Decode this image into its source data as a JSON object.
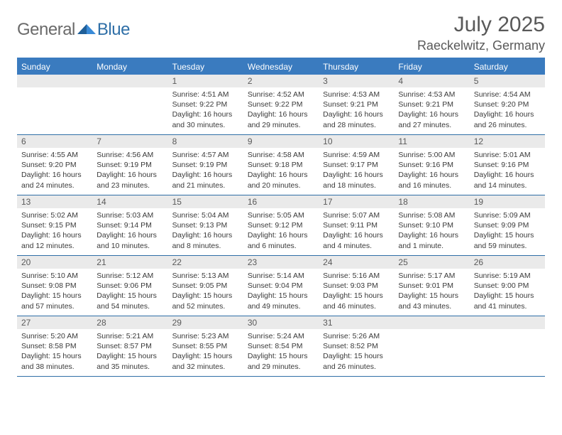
{
  "logo": {
    "text_a": "General",
    "text_b": "Blue"
  },
  "title": "July 2025",
  "location": "Raeckelwitz, Germany",
  "colors": {
    "header_bar": "#3a7bbf",
    "rule": "#2f6fa7",
    "daynum_bg": "#eaeaea",
    "text_muted": "#595959",
    "body_text": "#3a3a3a"
  },
  "weekdays": [
    "Sunday",
    "Monday",
    "Tuesday",
    "Wednesday",
    "Thursday",
    "Friday",
    "Saturday"
  ],
  "weeks": [
    [
      null,
      null,
      {
        "n": "1",
        "sr": "4:51 AM",
        "ss": "9:22 PM",
        "dl": "16 hours and 30 minutes."
      },
      {
        "n": "2",
        "sr": "4:52 AM",
        "ss": "9:22 PM",
        "dl": "16 hours and 29 minutes."
      },
      {
        "n": "3",
        "sr": "4:53 AM",
        "ss": "9:21 PM",
        "dl": "16 hours and 28 minutes."
      },
      {
        "n": "4",
        "sr": "4:53 AM",
        "ss": "9:21 PM",
        "dl": "16 hours and 27 minutes."
      },
      {
        "n": "5",
        "sr": "4:54 AM",
        "ss": "9:20 PM",
        "dl": "16 hours and 26 minutes."
      }
    ],
    [
      {
        "n": "6",
        "sr": "4:55 AM",
        "ss": "9:20 PM",
        "dl": "16 hours and 24 minutes."
      },
      {
        "n": "7",
        "sr": "4:56 AM",
        "ss": "9:19 PM",
        "dl": "16 hours and 23 minutes."
      },
      {
        "n": "8",
        "sr": "4:57 AM",
        "ss": "9:19 PM",
        "dl": "16 hours and 21 minutes."
      },
      {
        "n": "9",
        "sr": "4:58 AM",
        "ss": "9:18 PM",
        "dl": "16 hours and 20 minutes."
      },
      {
        "n": "10",
        "sr": "4:59 AM",
        "ss": "9:17 PM",
        "dl": "16 hours and 18 minutes."
      },
      {
        "n": "11",
        "sr": "5:00 AM",
        "ss": "9:16 PM",
        "dl": "16 hours and 16 minutes."
      },
      {
        "n": "12",
        "sr": "5:01 AM",
        "ss": "9:16 PM",
        "dl": "16 hours and 14 minutes."
      }
    ],
    [
      {
        "n": "13",
        "sr": "5:02 AM",
        "ss": "9:15 PM",
        "dl": "16 hours and 12 minutes."
      },
      {
        "n": "14",
        "sr": "5:03 AM",
        "ss": "9:14 PM",
        "dl": "16 hours and 10 minutes."
      },
      {
        "n": "15",
        "sr": "5:04 AM",
        "ss": "9:13 PM",
        "dl": "16 hours and 8 minutes."
      },
      {
        "n": "16",
        "sr": "5:05 AM",
        "ss": "9:12 PM",
        "dl": "16 hours and 6 minutes."
      },
      {
        "n": "17",
        "sr": "5:07 AM",
        "ss": "9:11 PM",
        "dl": "16 hours and 4 minutes."
      },
      {
        "n": "18",
        "sr": "5:08 AM",
        "ss": "9:10 PM",
        "dl": "16 hours and 1 minute."
      },
      {
        "n": "19",
        "sr": "5:09 AM",
        "ss": "9:09 PM",
        "dl": "15 hours and 59 minutes."
      }
    ],
    [
      {
        "n": "20",
        "sr": "5:10 AM",
        "ss": "9:08 PM",
        "dl": "15 hours and 57 minutes."
      },
      {
        "n": "21",
        "sr": "5:12 AM",
        "ss": "9:06 PM",
        "dl": "15 hours and 54 minutes."
      },
      {
        "n": "22",
        "sr": "5:13 AM",
        "ss": "9:05 PM",
        "dl": "15 hours and 52 minutes."
      },
      {
        "n": "23",
        "sr": "5:14 AM",
        "ss": "9:04 PM",
        "dl": "15 hours and 49 minutes."
      },
      {
        "n": "24",
        "sr": "5:16 AM",
        "ss": "9:03 PM",
        "dl": "15 hours and 46 minutes."
      },
      {
        "n": "25",
        "sr": "5:17 AM",
        "ss": "9:01 PM",
        "dl": "15 hours and 43 minutes."
      },
      {
        "n": "26",
        "sr": "5:19 AM",
        "ss": "9:00 PM",
        "dl": "15 hours and 41 minutes."
      }
    ],
    [
      {
        "n": "27",
        "sr": "5:20 AM",
        "ss": "8:58 PM",
        "dl": "15 hours and 38 minutes."
      },
      {
        "n": "28",
        "sr": "5:21 AM",
        "ss": "8:57 PM",
        "dl": "15 hours and 35 minutes."
      },
      {
        "n": "29",
        "sr": "5:23 AM",
        "ss": "8:55 PM",
        "dl": "15 hours and 32 minutes."
      },
      {
        "n": "30",
        "sr": "5:24 AM",
        "ss": "8:54 PM",
        "dl": "15 hours and 29 minutes."
      },
      {
        "n": "31",
        "sr": "5:26 AM",
        "ss": "8:52 PM",
        "dl": "15 hours and 26 minutes."
      },
      null,
      null
    ]
  ],
  "labels": {
    "sunrise": "Sunrise:",
    "sunset": "Sunset:",
    "daylight": "Daylight:"
  }
}
